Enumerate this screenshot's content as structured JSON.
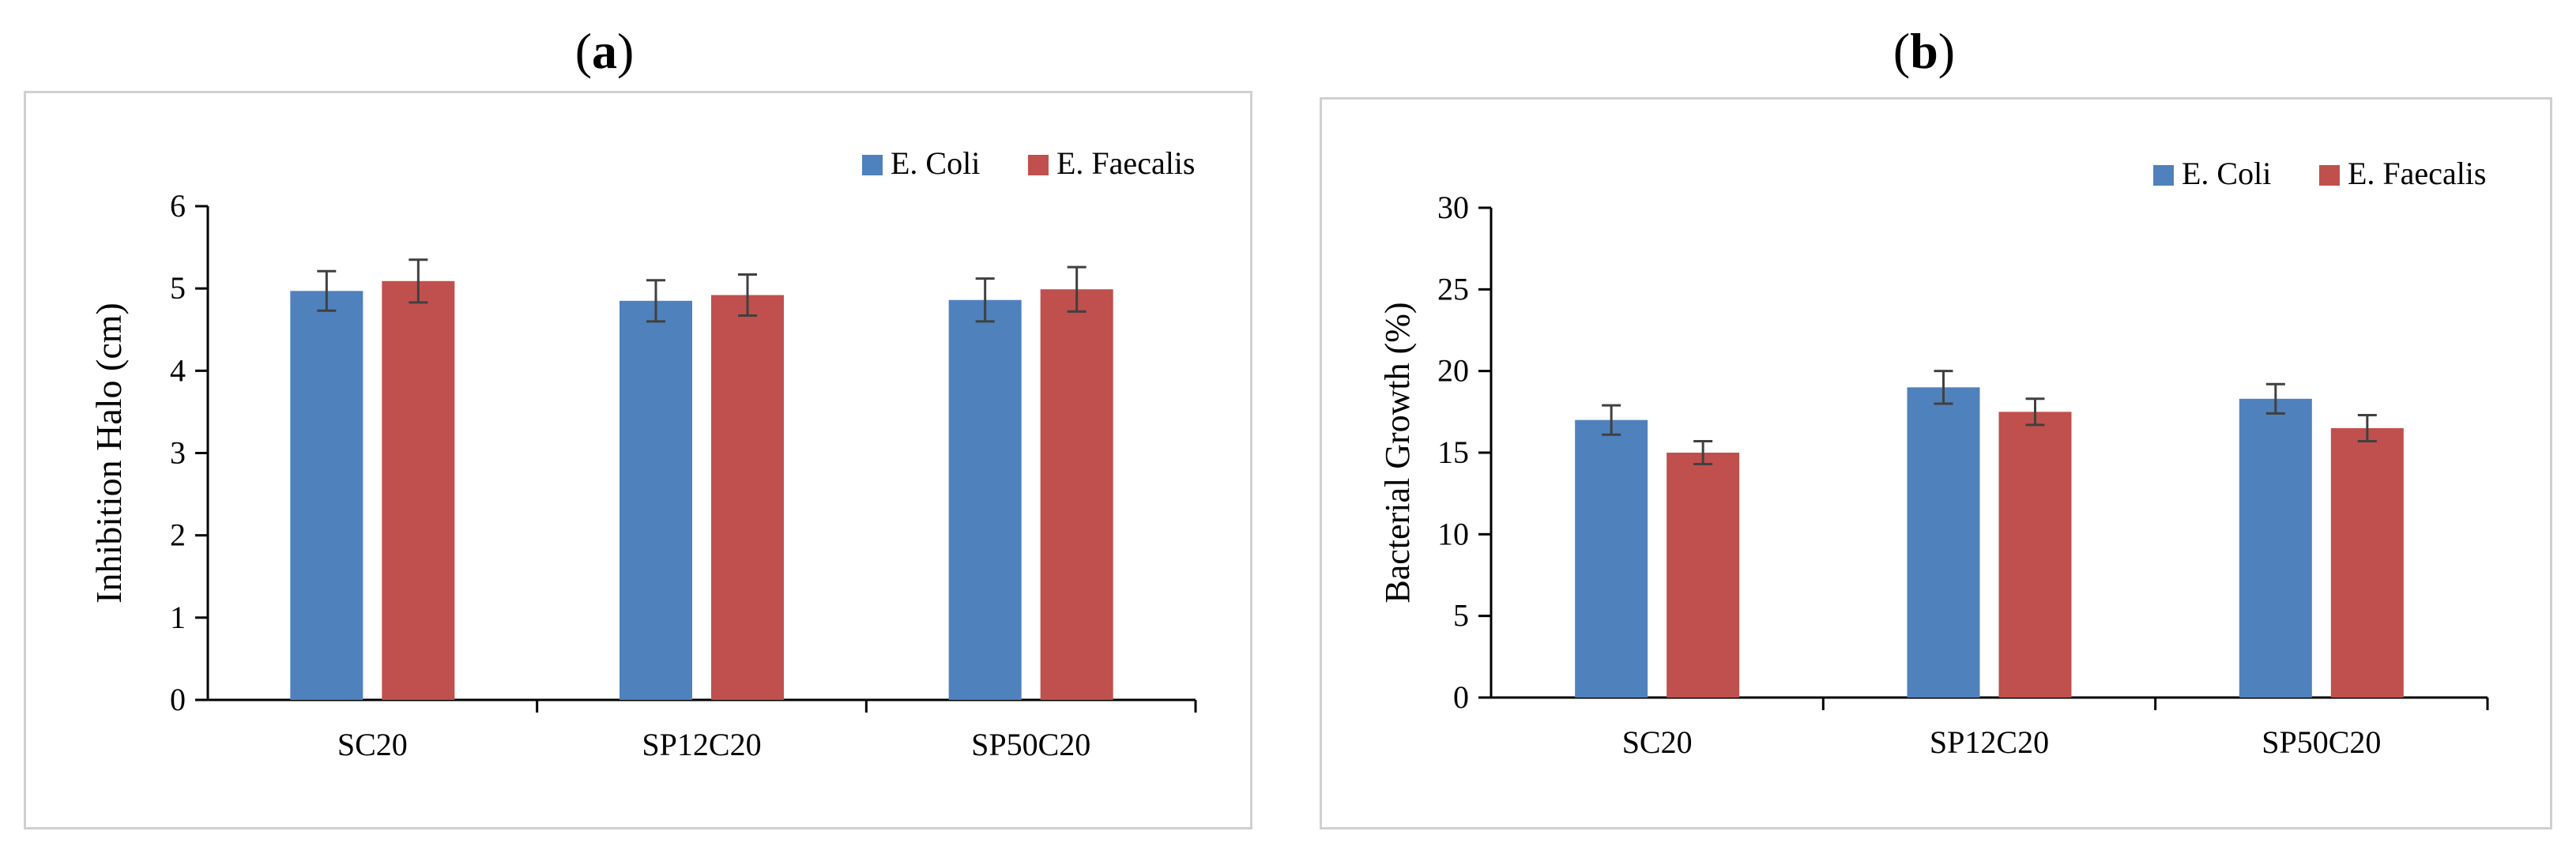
{
  "panels": [
    {
      "label_open": "(",
      "label_letter": "a",
      "label_close": ")"
    },
    {
      "label_open": "(",
      "label_letter": "b",
      "label_close": ")"
    }
  ],
  "colors": {
    "e_coli": "#4f81bd",
    "e_faecalis": "#c0504d",
    "error_bar": "#404040",
    "axis": "#000000"
  },
  "chart_data": [
    {
      "type": "bar",
      "title": "",
      "xlabel": "",
      "ylabel": "Inhibition Halo (cm)",
      "categories": [
        "SC20",
        "SP12C20",
        "SP50C20"
      ],
      "ylim": [
        0,
        6
      ],
      "yticks": [
        0,
        1,
        2,
        3,
        4,
        5,
        6
      ],
      "legend_position": "top-right",
      "series": [
        {
          "name": "E. Coli",
          "values": [
            4.97,
            4.85,
            4.86
          ],
          "errors": [
            0.24,
            0.25,
            0.26
          ]
        },
        {
          "name": "E. Faecalis",
          "values": [
            5.09,
            4.92,
            4.99
          ],
          "errors": [
            0.26,
            0.25,
            0.27
          ]
        }
      ]
    },
    {
      "type": "bar",
      "title": "",
      "xlabel": "",
      "ylabel": "Bacterial Growth (%)",
      "categories": [
        "SC20",
        "SP12C20",
        "SP50C20"
      ],
      "ylim": [
        0,
        30
      ],
      "yticks": [
        0,
        5,
        10,
        15,
        20,
        25,
        30
      ],
      "legend_position": "top-right",
      "series": [
        {
          "name": "E. Coli",
          "values": [
            17.0,
            19.0,
            18.3
          ],
          "errors": [
            0.9,
            1.0,
            0.9
          ]
        },
        {
          "name": "E. Faecalis",
          "values": [
            15.0,
            17.5,
            16.5
          ],
          "errors": [
            0.7,
            0.8,
            0.8
          ]
        }
      ]
    }
  ]
}
